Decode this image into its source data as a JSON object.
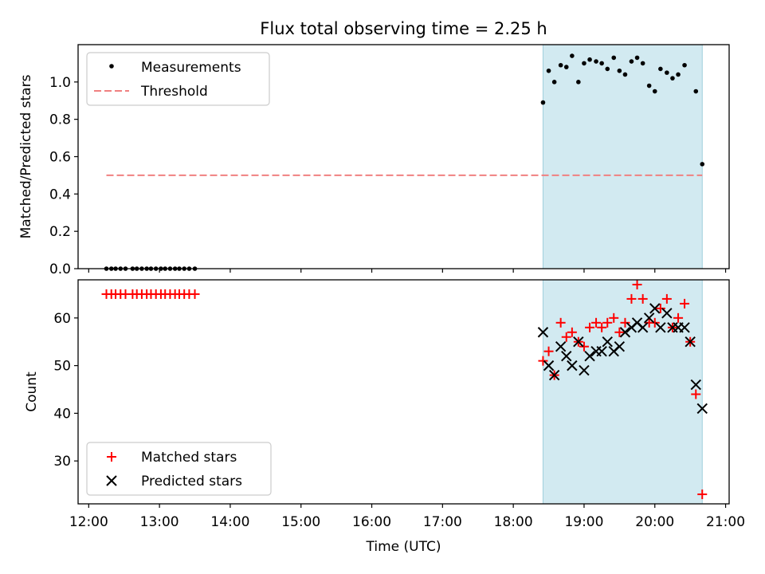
{
  "chart_data": [
    {
      "type": "scatter",
      "title": "Flux total observing time = 2.25 h",
      "ylabel": "Matched/Predicted stars",
      "xlabel": "",
      "xlim": [
        11.85,
        21.05
      ],
      "ylim": [
        0.0,
        1.2
      ],
      "xticks": [
        12,
        13,
        14,
        15,
        16,
        17,
        18,
        19,
        20,
        21
      ],
      "yticks": [
        0.0,
        0.2,
        0.4,
        0.6,
        0.8,
        1.0
      ],
      "ytick_labels": [
        "0.0",
        "0.2",
        "0.4",
        "0.6",
        "0.8",
        "1.0"
      ],
      "shaded_span": [
        18.42,
        20.67
      ],
      "threshold": {
        "name": "Threshold",
        "y": 0.5,
        "x": [
          12.25,
          20.67
        ],
        "color": "#f08080"
      },
      "series": [
        {
          "name": "Measurements",
          "marker": "dot",
          "color": "#000000",
          "x": [
            12.25,
            12.32,
            12.38,
            12.45,
            12.52,
            12.62,
            12.68,
            12.75,
            12.82,
            12.88,
            12.95,
            13.02,
            13.08,
            13.15,
            13.22,
            13.28,
            13.35,
            13.42,
            13.5,
            18.42,
            18.5,
            18.58,
            18.67,
            18.75,
            18.83,
            18.92,
            19.0,
            19.08,
            19.17,
            19.25,
            19.33,
            19.42,
            19.5,
            19.58,
            19.67,
            19.75,
            19.83,
            19.92,
            20.0,
            20.08,
            20.17,
            20.25,
            20.33,
            20.42,
            20.58,
            20.67
          ],
          "y": [
            0,
            0,
            0,
            0,
            0,
            0,
            0,
            0,
            0,
            0,
            0,
            0,
            0,
            0,
            0,
            0,
            0,
            0,
            0,
            0.89,
            1.06,
            1.0,
            1.09,
            1.08,
            1.14,
            1.0,
            1.1,
            1.12,
            1.11,
            1.1,
            1.07,
            1.13,
            1.06,
            1.04,
            1.11,
            1.13,
            1.1,
            0.98,
            0.95,
            1.07,
            1.05,
            1.02,
            1.04,
            1.09,
            0.95,
            0.56
          ]
        }
      ],
      "legend": [
        "Measurements",
        "Threshold"
      ],
      "legend_position": "upper-left"
    },
    {
      "type": "scatter",
      "title": "",
      "ylabel": "Count",
      "xlabel": "Time (UTC)",
      "xlim": [
        11.85,
        21.05
      ],
      "ylim": [
        21,
        68
      ],
      "xticks": [
        12,
        13,
        14,
        15,
        16,
        17,
        18,
        19,
        20,
        21
      ],
      "xtick_labels": [
        "12:00",
        "13:00",
        "14:00",
        "15:00",
        "16:00",
        "17:00",
        "18:00",
        "19:00",
        "20:00",
        "21:00"
      ],
      "yticks": [
        30,
        40,
        50,
        60
      ],
      "ytick_labels": [
        "30",
        "40",
        "50",
        "60"
      ],
      "shaded_span": [
        18.42,
        20.67
      ],
      "series": [
        {
          "name": "Matched stars",
          "marker": "plus",
          "color": "#ff0000",
          "x": [
            12.25,
            12.32,
            12.38,
            12.45,
            12.52,
            12.62,
            12.68,
            12.75,
            12.82,
            12.88,
            12.95,
            13.02,
            13.08,
            13.15,
            13.22,
            13.28,
            13.35,
            13.42,
            13.5,
            18.42,
            18.5,
            18.58,
            18.67,
            18.75,
            18.83,
            18.92,
            19.0,
            19.08,
            19.17,
            19.25,
            19.33,
            19.42,
            19.5,
            19.58,
            19.67,
            19.75,
            19.83,
            19.92,
            20.0,
            20.08,
            20.17,
            20.25,
            20.33,
            20.42,
            20.5,
            20.58,
            20.67
          ],
          "y": [
            65,
            65,
            65,
            65,
            65,
            65,
            65,
            65,
            65,
            65,
            65,
            65,
            65,
            65,
            65,
            65,
            65,
            65,
            65,
            51,
            53,
            48,
            59,
            56,
            57,
            55,
            54,
            58,
            59,
            58,
            59,
            60,
            57,
            59,
            64,
            67,
            64,
            59,
            59,
            62,
            64,
            58,
            60,
            63,
            55,
            44,
            23
          ]
        },
        {
          "name": "Predicted stars",
          "marker": "x",
          "color": "#000000",
          "x": [
            18.42,
            18.5,
            18.58,
            18.67,
            18.75,
            18.83,
            18.92,
            19.0,
            19.08,
            19.17,
            19.25,
            19.33,
            19.42,
            19.5,
            19.58,
            19.67,
            19.75,
            19.83,
            19.92,
            20.0,
            20.08,
            20.17,
            20.25,
            20.33,
            20.42,
            20.5,
            20.58,
            20.67
          ],
          "y": [
            57,
            50,
            48,
            54,
            52,
            50,
            55,
            49,
            52,
            53,
            53,
            55,
            53,
            54,
            57,
            58,
            59,
            58,
            60,
            62,
            58,
            61,
            58,
            58,
            58,
            55,
            46,
            41
          ]
        }
      ],
      "legend": [
        "Matched stars",
        "Predicted stars"
      ],
      "legend_position": "lower-left"
    }
  ]
}
